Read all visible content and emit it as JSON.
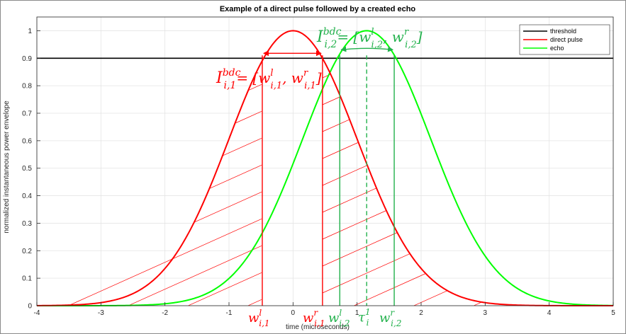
{
  "chart_data": {
    "type": "line",
    "title": "Example of a direct pulse followed by a created echo",
    "xlabel": "time (microseconds)",
    "ylabel": "normalized instantaneous power envelope",
    "xlim": [
      -4,
      5
    ],
    "ylim": [
      0,
      1.05
    ],
    "x_ticks": [
      "-4",
      "-3",
      "-2",
      "-1",
      "0",
      "1",
      "2",
      "3",
      "4",
      "5"
    ],
    "y_ticks": [
      "0",
      "0.1",
      "0.2",
      "0.3",
      "0.4",
      "0.5",
      "0.6",
      "0.7",
      "0.8",
      "0.9",
      "1"
    ],
    "grid": true,
    "legend_position": "top-right",
    "series": [
      {
        "name": "threshold",
        "color": "#000000",
        "kind": "constant",
        "value": 0.9
      },
      {
        "name": "direct pulse",
        "color": "#ff0000",
        "kind": "gaussian",
        "center": 0,
        "sigma": 1.0
      },
      {
        "name": "echo",
        "color": "#00ff00",
        "kind": "gaussian",
        "center": 1.15,
        "sigma": 1.0
      }
    ],
    "markers": {
      "direct_left": -0.48,
      "direct_right": 0.46,
      "echo_left": 0.73,
      "echo_right": 1.58,
      "tau": 1.15
    },
    "annotations": {
      "interval_1": {
        "base": "I",
        "sup": "bdc",
        "sub": "i,1",
        "rest_a": "= [w",
        "sup_l": "l",
        "sub_a": "i,1",
        "comma": ", w",
        "sup_r": "r",
        "sub_b": "i,1",
        "close": "]"
      },
      "interval_2": {
        "base": "I",
        "sup": "bdc",
        "sub": "i,2",
        "rest_a": "= [w",
        "sup_l": "l",
        "sub_a": "i,2",
        "comma": ", w",
        "sup_r": "r",
        "sub_b": "i,2",
        "close": "]"
      },
      "w_il1": {
        "base": "w",
        "sup": "l",
        "sub": "i,1"
      },
      "w_ir1": {
        "base": "w",
        "sup": "r",
        "sub": "i,1"
      },
      "w_il2": {
        "base": "w",
        "sup": "l",
        "sub": "i,2"
      },
      "tau": {
        "base": "τ",
        "sup": "1",
        "sub": "i"
      },
      "w_ir2": {
        "base": "w",
        "sup": "r",
        "sub": "i,2"
      }
    }
  }
}
